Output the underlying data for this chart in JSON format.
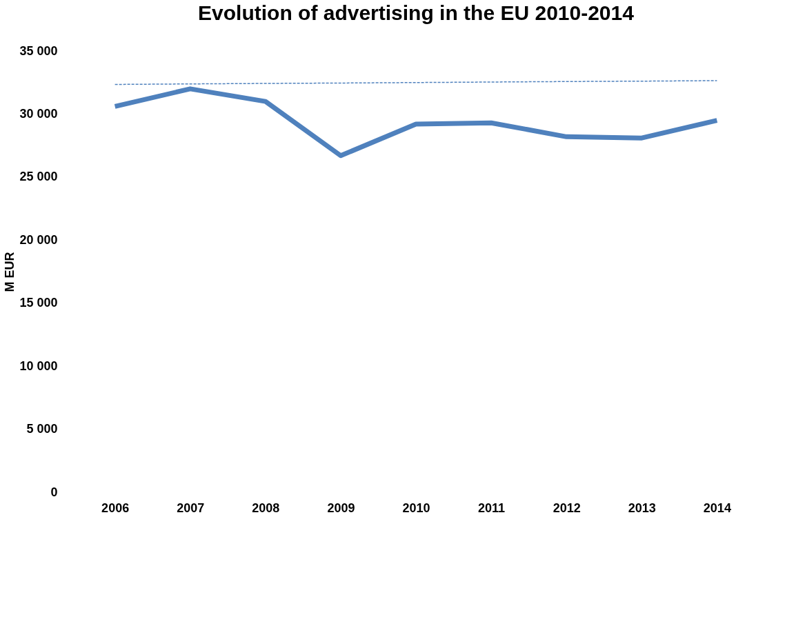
{
  "chart_data": {
    "type": "line",
    "title": "Evolution of advertising in the EU 2010-2014",
    "ylabel": "M EUR",
    "categories": [
      "2006",
      "2007",
      "2008",
      "2009",
      "2010",
      "2011",
      "2012",
      "2013",
      "2014"
    ],
    "series": [
      {
        "color": "#4f81bd",
        "values": [
          30600,
          32000,
          31000,
          26700,
          29200,
          29300,
          28200,
          28100,
          29500
        ],
        "line_style": "solid"
      },
      {
        "type": "line",
        "color": "#4f81bd",
        "values": [
          32350,
          32390,
          32430,
          32460,
          32500,
          32540,
          32580,
          32610,
          32650
        ],
        "line_style": "dashed"
      }
    ],
    "ylim": [
      0,
      35000
    ],
    "yticks": [
      {
        "value": 0,
        "label": "0"
      },
      {
        "value": 5000,
        "label": "5 000"
      },
      {
        "value": 10000,
        "label": "10 000"
      },
      {
        "value": 15000,
        "label": "15 000"
      },
      {
        "value": 20000,
        "label": "20 000"
      },
      {
        "value": 25000,
        "label": "25 000"
      },
      {
        "value": 30000,
        "label": "30 000"
      },
      {
        "value": 35000,
        "label": "35 000"
      }
    ],
    "grid": false,
    "marker": "none"
  }
}
